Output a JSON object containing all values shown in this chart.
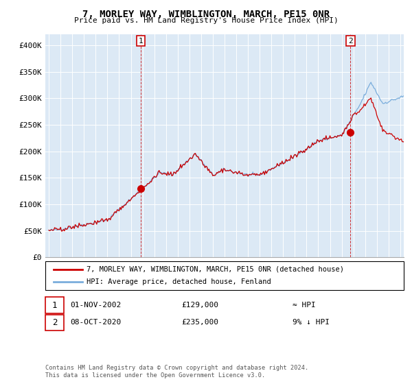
{
  "title": "7, MORLEY WAY, WIMBLINGTON, MARCH, PE15 0NR",
  "subtitle": "Price paid vs. HM Land Registry's House Price Index (HPI)",
  "hpi_label": "HPI: Average price, detached house, Fenland",
  "property_label": "7, MORLEY WAY, WIMBLINGTON, MARCH, PE15 0NR (detached house)",
  "annotation1": {
    "label": "1",
    "date": "01-NOV-2002",
    "price": 129000,
    "vs_hpi": "≈ HPI"
  },
  "annotation2": {
    "label": "2",
    "date": "08-OCT-2020",
    "price": 235000,
    "vs_hpi": "9% ↓ HPI"
  },
  "footer": "Contains HM Land Registry data © Crown copyright and database right 2024.\nThis data is licensed under the Open Government Licence v3.0.",
  "hpi_color": "#7aaddc",
  "property_color": "#cc0000",
  "annotation_color": "#cc0000",
  "background_color": "#ffffff",
  "plot_bg_color": "#dce9f5",
  "ylim": [
    0,
    420000
  ],
  "yticks": [
    0,
    50000,
    100000,
    150000,
    200000,
    250000,
    300000,
    350000,
    400000
  ],
  "ytick_labels": [
    "£0",
    "£50K",
    "£100K",
    "£150K",
    "£200K",
    "£250K",
    "£300K",
    "£350K",
    "£400K"
  ]
}
